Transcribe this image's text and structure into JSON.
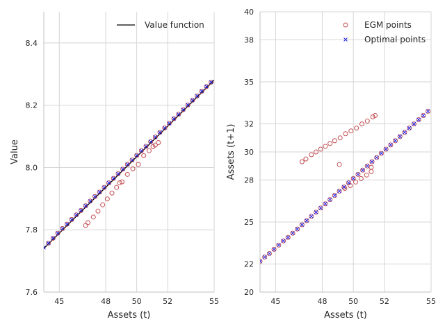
{
  "chart_data": [
    {
      "type": "scatter",
      "xlabel": "Assets (t)",
      "ylabel": "Value",
      "xlim": [
        44.0,
        55.0
      ],
      "ylim": [
        7.6,
        8.5
      ],
      "xticks": [
        45,
        48,
        50,
        52,
        55
      ],
      "xtick_labels": [
        "45",
        "48",
        "50",
        "52",
        "55"
      ],
      "yticks": [
        7.6,
        7.8,
        8.0,
        8.2,
        8.4
      ],
      "ytick_labels": [
        "7.6",
        "7.8",
        "8.0",
        "8.2",
        "8.4"
      ],
      "grid": true,
      "legend_position": "top-right",
      "legend": [
        "Value function"
      ],
      "series": [
        {
          "name": "Value function",
          "kind": "line",
          "color": "#000000",
          "x": [
            44.0,
            55.0
          ],
          "y": [
            7.74,
            8.28
          ]
        },
        {
          "kind": "markers-o",
          "color": "#c44e52",
          "x": [
            44.3,
            44.6,
            44.9,
            45.2,
            45.5,
            45.8,
            46.1,
            46.4,
            46.7,
            47.0,
            47.3,
            47.6,
            47.9,
            48.2,
            48.5,
            48.8,
            49.1,
            49.4,
            49.7,
            50.0,
            50.3,
            50.6,
            50.9,
            51.2,
            51.5,
            51.8,
            52.1,
            52.4,
            52.7,
            53.0,
            53.3,
            53.6,
            53.9,
            54.2,
            54.5,
            54.8,
            46.7,
            46.85,
            47.2,
            47.5,
            47.8,
            48.1,
            48.4,
            48.7,
            48.9,
            49.05,
            49.4,
            49.75,
            50.1,
            50.45,
            50.8,
            51.05,
            51.2,
            51.4
          ],
          "y": [
            7.757,
            7.773,
            7.789,
            7.804,
            7.818,
            7.833,
            7.848,
            7.862,
            7.877,
            7.892,
            7.907,
            7.921,
            7.936,
            7.951,
            7.965,
            7.98,
            7.995,
            8.01,
            8.024,
            8.039,
            8.054,
            8.068,
            8.083,
            8.098,
            8.113,
            8.127,
            8.142,
            8.157,
            8.171,
            8.186,
            8.201,
            8.216,
            8.23,
            8.245,
            8.26,
            8.274,
            7.814,
            7.823,
            7.841,
            7.86,
            7.88,
            7.899,
            7.918,
            7.936,
            7.951,
            7.954,
            7.978,
            7.996,
            8.01,
            8.038,
            8.054,
            8.067,
            8.072,
            8.08
          ]
        },
        {
          "kind": "markers-x",
          "color": "#1f1fe0",
          "x": [
            44.0,
            44.3,
            44.6,
            44.9,
            45.2,
            45.5,
            45.8,
            46.1,
            46.4,
            46.7,
            47.0,
            47.3,
            47.6,
            47.9,
            48.2,
            48.5,
            48.8,
            49.1,
            49.4,
            49.7,
            50.0,
            50.3,
            50.6,
            50.9,
            51.2,
            51.5,
            51.8,
            52.1,
            52.4,
            52.7,
            53.0,
            53.3,
            53.6,
            53.9,
            54.2,
            54.5,
            54.8
          ],
          "y": [
            7.743,
            7.757,
            7.773,
            7.789,
            7.804,
            7.818,
            7.833,
            7.848,
            7.862,
            7.877,
            7.892,
            7.907,
            7.921,
            7.936,
            7.951,
            7.965,
            7.98,
            7.995,
            8.01,
            8.024,
            8.039,
            8.054,
            8.068,
            8.083,
            8.098,
            8.113,
            8.127,
            8.142,
            8.157,
            8.171,
            8.186,
            8.201,
            8.216,
            8.23,
            8.245,
            8.26,
            8.274
          ]
        }
      ]
    },
    {
      "type": "scatter",
      "xlabel": "Assets (t)",
      "ylabel": "Assets (t+1)",
      "xlim": [
        44.0,
        55.0
      ],
      "ylim": [
        20.0,
        40.0
      ],
      "xticks": [
        45,
        48,
        50,
        52,
        55
      ],
      "xtick_labels": [
        "45",
        "48",
        "50",
        "52",
        "55"
      ],
      "yticks": [
        20.0,
        22.0,
        25.0,
        28.0,
        30.0,
        32.0,
        35.0,
        38.0,
        40.0
      ],
      "ytick_labels": [
        "20",
        "22",
        "25",
        "28",
        "30",
        "32",
        "35",
        "38",
        "40"
      ],
      "grid": true,
      "legend_position": "top-right",
      "legend": [
        "EGM points",
        "Optimal points"
      ],
      "series": [
        {
          "name": "EGM points",
          "kind": "markers-o",
          "color": "#c44e52",
          "x": [
            44.0,
            44.3,
            44.6,
            44.9,
            45.2,
            45.5,
            45.8,
            46.1,
            46.4,
            46.7,
            47.0,
            47.3,
            47.6,
            47.9,
            48.2,
            48.5,
            48.8,
            49.1,
            49.4,
            49.7,
            50.0,
            50.3,
            50.6,
            50.9,
            51.2,
            51.5,
            51.8,
            52.1,
            52.4,
            52.7,
            53.0,
            53.3,
            53.6,
            53.9,
            54.2,
            54.5,
            54.8,
            46.7,
            46.95,
            47.3,
            47.6,
            47.9,
            48.2,
            48.5,
            48.8,
            49.15,
            49.5,
            49.85,
            50.2,
            50.55,
            50.9,
            51.25,
            51.4,
            51.15,
            49.1,
            49.45,
            49.8,
            50.15,
            50.5,
            50.85,
            51.15
          ],
          "y": [
            22.2,
            22.5,
            22.75,
            23.05,
            23.35,
            23.65,
            23.9,
            24.2,
            24.5,
            24.8,
            25.1,
            25.4,
            25.7,
            26.0,
            26.3,
            26.6,
            26.9,
            27.2,
            27.5,
            27.8,
            28.1,
            28.4,
            28.7,
            29.0,
            29.3,
            29.6,
            29.9,
            30.2,
            30.5,
            30.8,
            31.1,
            31.4,
            31.7,
            32.0,
            32.3,
            32.6,
            32.9,
            29.3,
            29.5,
            29.8,
            30.0,
            30.2,
            30.4,
            30.6,
            30.8,
            31.0,
            31.3,
            31.5,
            31.7,
            32.0,
            32.2,
            32.5,
            32.6,
            28.9,
            29.1,
            27.4,
            27.6,
            27.85,
            28.1,
            28.35,
            28.6
          ]
        },
        {
          "name": "Optimal points",
          "kind": "markers-x",
          "color": "#1f1fe0",
          "x": [
            44.0,
            44.3,
            44.6,
            44.9,
            45.2,
            45.5,
            45.8,
            46.1,
            46.4,
            46.7,
            47.0,
            47.3,
            47.6,
            47.9,
            48.2,
            48.5,
            48.8,
            49.1,
            49.4,
            49.7,
            50.0,
            50.3,
            50.6,
            50.9,
            51.2,
            51.5,
            51.8,
            52.1,
            52.4,
            52.7,
            53.0,
            53.3,
            53.6,
            53.9,
            54.2,
            54.5,
            54.8
          ],
          "y": [
            22.2,
            22.5,
            22.75,
            23.05,
            23.35,
            23.65,
            23.9,
            24.2,
            24.5,
            24.8,
            25.1,
            25.4,
            25.7,
            26.0,
            26.3,
            26.6,
            26.9,
            27.2,
            27.5,
            27.8,
            28.1,
            28.4,
            28.7,
            29.0,
            29.3,
            29.6,
            29.9,
            30.2,
            30.5,
            30.8,
            31.1,
            31.4,
            31.7,
            32.0,
            32.3,
            32.6,
            32.9
          ]
        }
      ]
    }
  ]
}
